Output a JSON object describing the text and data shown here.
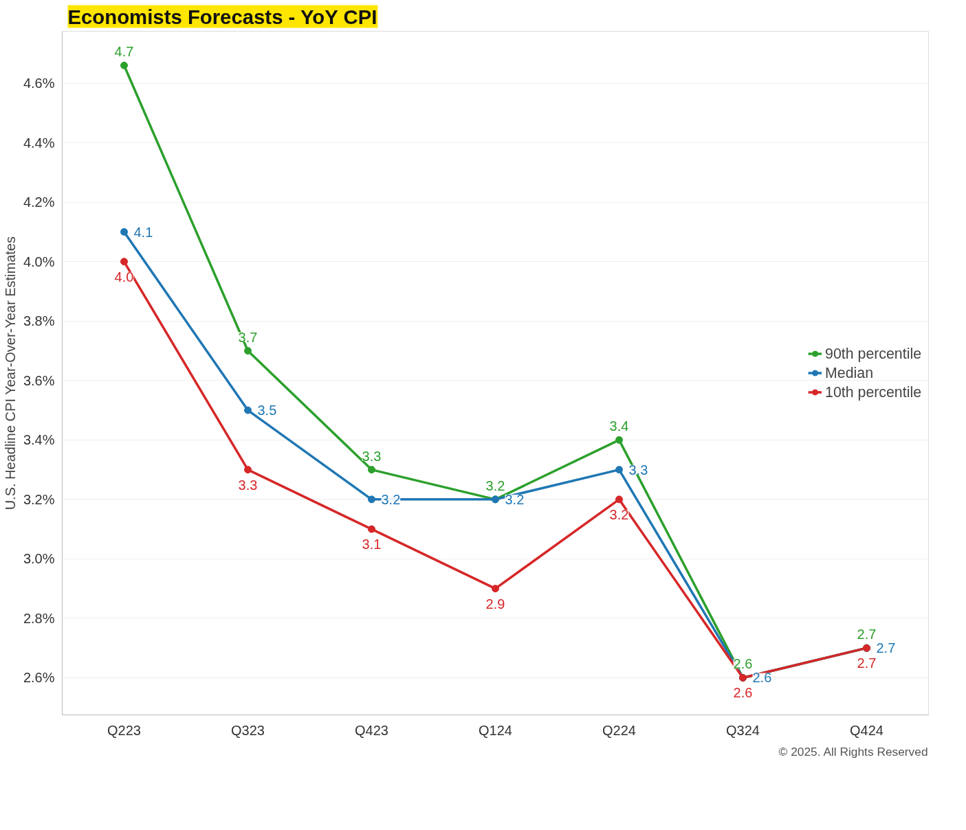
{
  "chart_data": {
    "type": "line",
    "title": "Economists Forecasts - YoY CPI",
    "ylabel": "U.S. Headline CPI Year-Over-Year Estimates",
    "categories": [
      "Q223",
      "Q323",
      "Q423",
      "Q124",
      "Q224",
      "Q324",
      "Q424"
    ],
    "series": [
      {
        "name": "90th percentile",
        "color": "#2ca02c",
        "values": [
          4.66,
          3.7,
          3.3,
          3.2,
          3.4,
          2.6,
          2.7
        ],
        "value_labels": [
          "4.7",
          "3.7",
          "3.3",
          "3.2",
          "3.4",
          "2.6",
          "2.7"
        ]
      },
      {
        "name": "Median",
        "color": "#1f77b4",
        "values": [
          4.1,
          3.5,
          3.2,
          3.2,
          3.3,
          2.6,
          2.7
        ],
        "value_labels": [
          "4.1",
          "3.5",
          "3.2",
          "3.2",
          "3.3",
          "2.6",
          "2.7"
        ]
      },
      {
        "name": "10th percentile",
        "color": "#d62728",
        "values": [
          4.0,
          3.3,
          3.1,
          2.9,
          3.2,
          2.6,
          2.7
        ],
        "value_labels": [
          "4.0",
          "3.3",
          "3.1",
          "2.9",
          "3.2",
          "2.6",
          "2.7"
        ]
      }
    ],
    "ylim": [
      2.475,
      4.775
    ],
    "yticks": [
      {
        "value": 2.6,
        "label": "2.6%"
      },
      {
        "value": 2.8,
        "label": "2.8%"
      },
      {
        "value": 3.0,
        "label": "3.0%"
      },
      {
        "value": 3.2,
        "label": "3.2%"
      },
      {
        "value": 3.4,
        "label": "3.4%"
      },
      {
        "value": 3.6,
        "label": "3.6%"
      },
      {
        "value": 3.8,
        "label": "3.8%"
      },
      {
        "value": 4.0,
        "label": "4.0%"
      },
      {
        "value": 4.2,
        "label": "4.2%"
      },
      {
        "value": 4.4,
        "label": "4.4%"
      },
      {
        "value": 4.6,
        "label": "4.6%"
      }
    ],
    "grid": "y",
    "legend": "right",
    "marker": "circle",
    "line_style": "solid",
    "annotations": [
      "© 2025. All Rights Reserved"
    ]
  }
}
